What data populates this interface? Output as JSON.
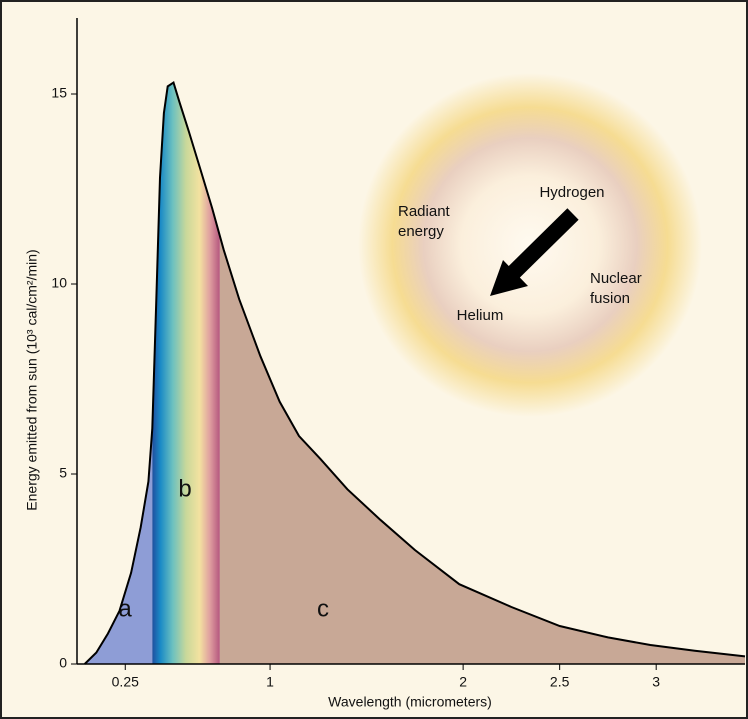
{
  "chart_data": {
    "type": "area",
    "xlabel": "Wavelength (micrometers)",
    "ylabel": "Energy emitted from sun (10³ cal/cm²/min)",
    "x": [
      0.04,
      0.1,
      0.16,
      0.22,
      0.28,
      0.33,
      0.37,
      0.39,
      0.41,
      0.43,
      0.45,
      0.47,
      0.5,
      0.53,
      0.58,
      0.64,
      0.7,
      0.76,
      0.84,
      0.95,
      1.05,
      1.15,
      1.26,
      1.4,
      1.57,
      1.75,
      1.98,
      2.25,
      2.5,
      2.75,
      2.97,
      3.2,
      3.46
    ],
    "values": [
      0,
      0.3,
      0.8,
      1.4,
      2.4,
      3.6,
      4.8,
      6.2,
      9.5,
      12.8,
      14.5,
      15.2,
      15.3,
      14.8,
      14.0,
      13.0,
      12.0,
      10.9,
      9.6,
      8.1,
      6.9,
      6.0,
      5.4,
      4.6,
      3.8,
      3.0,
      2.1,
      1.5,
      1.0,
      0.7,
      0.5,
      0.35,
      0.2
    ],
    "regions": [
      {
        "label": "a",
        "from": 0.04,
        "to": 0.39,
        "color": "#8e9dd6"
      },
      {
        "label": "b",
        "from": 0.39,
        "to": 0.74,
        "color": "spectrum"
      },
      {
        "label": "c",
        "from": 0.74,
        "to": 3.46,
        "color": "#c8a896"
      }
    ],
    "annotations": [
      {
        "lines": [
          "Radiant",
          "energy"
        ]
      },
      {
        "lines": [
          "Hydrogen"
        ]
      },
      {
        "lines": [
          "Helium"
        ]
      },
      {
        "lines": [
          "Nuclear",
          "fusion"
        ]
      }
    ],
    "xlim": [
      0,
      3.46
    ],
    "ylim": [
      0,
      17
    ],
    "xticks": [
      0.25,
      1,
      2,
      2.5,
      3
    ],
    "yticks": [
      0,
      5,
      10,
      15
    ]
  }
}
